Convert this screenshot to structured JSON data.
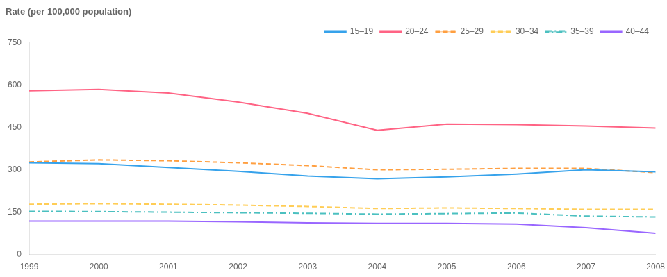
{
  "chart_data": {
    "type": "line",
    "ylabel": "Rate (per 100,000 population)",
    "x": [
      1999,
      2000,
      2001,
      2002,
      2003,
      2004,
      2005,
      2006,
      2007,
      2008
    ],
    "xlim": [
      1999,
      2008
    ],
    "xticks": [
      1999,
      2000,
      2001,
      2002,
      2003,
      2004,
      2005,
      2006,
      2007,
      2008
    ],
    "ylim": [
      0,
      750
    ],
    "yticks": [
      0,
      150,
      300,
      450,
      600,
      750
    ],
    "grid": false,
    "legend": "upper right",
    "series": [
      {
        "name": "15–19",
        "line_style": "solid",
        "values": [
          325,
          322,
          308,
          295,
          278,
          268,
          275,
          285,
          300,
          293
        ]
      },
      {
        "name": "20–24",
        "line_style": "solid",
        "values": [
          580,
          585,
          572,
          540,
          500,
          440,
          462,
          460,
          455,
          448
        ]
      },
      {
        "name": "25–29",
        "line_style": "dashed",
        "values": [
          328,
          335,
          332,
          325,
          315,
          300,
          302,
          305,
          305,
          290
        ]
      },
      {
        "name": "30–34",
        "line_style": "dashed",
        "values": [
          178,
          180,
          178,
          175,
          170,
          163,
          165,
          163,
          160,
          160
        ]
      },
      {
        "name": "35–39",
        "line_style": "dashdot",
        "values": [
          153,
          152,
          150,
          148,
          146,
          143,
          145,
          147,
          136,
          133
        ]
      },
      {
        "name": "40–44",
        "line_style": "solid",
        "values": [
          118,
          118,
          118,
          116,
          112,
          110,
          110,
          108,
          95,
          75
        ]
      }
    ]
  }
}
